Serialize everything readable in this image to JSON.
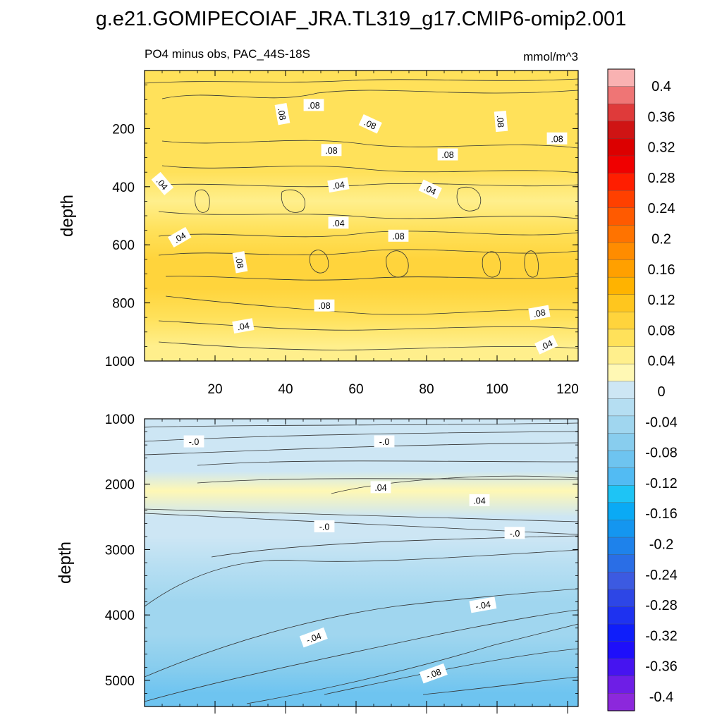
{
  "chart_data": {
    "type": "contour",
    "title": "g.e21.GOMIPECOIAF_JRA.TL319_g17.CMIP6-omip2.001",
    "subtitle_left": "PO4 minus obs, PAC_44S-18S",
    "subtitle_right": "mmol/m^3",
    "colorbar": {
      "labels": [
        "0.4",
        "0.36",
        "0.32",
        "0.28",
        "0.24",
        "0.2",
        "0.16",
        "0.12",
        "0.08",
        "0.04",
        "0",
        "-0.04",
        "-0.08",
        "-0.12",
        "-0.16",
        "-0.2",
        "-0.24",
        "-0.28",
        "-0.32",
        "-0.36",
        "-0.4"
      ],
      "colors": [
        "#f9b2b2",
        "#ef7575",
        "#df3a3a",
        "#cf1414",
        "#dc0000",
        "#f00000",
        "#ff1e00",
        "#ff4000",
        "#ff5a00",
        "#ff7300",
        "#ff8c00",
        "#ffa000",
        "#ffb300",
        "#ffc61e",
        "#ffd43c",
        "#ffe15a",
        "#ffef8c",
        "#fff8b4",
        "#cde6f4",
        "#b5def2",
        "#a0d6ef",
        "#88cdee",
        "#6ec4f0",
        "#52bbf3",
        "#1ec4f5",
        "#0aaaf5",
        "#1496f0",
        "#1e82eb",
        "#2a6ee6",
        "#3c5ae1",
        "#2d46e6",
        "#1e32f0",
        "#0f1efa",
        "#1e0ffa",
        "#4614f0",
        "#6e1ee6",
        "#8c28dc"
      ]
    },
    "panels": [
      {
        "id": "upper",
        "ylabel": "depth",
        "xlim": [
          0,
          123
        ],
        "ylim": [
          1000,
          0
        ],
        "x_ticks": [
          "20",
          "40",
          "60",
          "80",
          "100",
          "120"
        ],
        "y_ticks": [
          "200",
          "400",
          "600",
          "800",
          "1000"
        ],
        "levels": [
          {
            "depth": 50,
            "value": 0.06
          },
          {
            "depth": 150,
            "value": 0.08
          },
          {
            "depth": 250,
            "value": 0.08
          },
          {
            "depth": 350,
            "value": 0.06
          },
          {
            "depth": 450,
            "value": 0.04
          },
          {
            "depth": 550,
            "value": 0.06
          },
          {
            "depth": 650,
            "value": 0.09
          },
          {
            "depth": 750,
            "value": 0.09
          },
          {
            "depth": 850,
            "value": 0.07
          },
          {
            "depth": 950,
            "value": 0.05
          }
        ],
        "contour_labels": [
          {
            "text": ".08",
            "x": 48,
            "depth": 120,
            "angle": 0
          },
          {
            "text": ".08",
            "x": 0,
            "depth": 150,
            "angle": 80,
            "offset_x": 38
          },
          {
            "text": ".08",
            "x": 64,
            "depth": 185,
            "angle": 25
          },
          {
            "text": ".08",
            "x": 101,
            "depth": 175,
            "angle": 85
          },
          {
            "text": ".08",
            "x": 117,
            "depth": 235,
            "angle": 0
          },
          {
            "text": ".08",
            "x": 53,
            "depth": 275,
            "angle": 0
          },
          {
            "text": ".08",
            "x": 86,
            "depth": 290,
            "angle": 0
          },
          {
            "text": ".04",
            "x": 5,
            "depth": 390,
            "angle": 50
          },
          {
            "text": ".04",
            "x": 55,
            "depth": 395,
            "angle": -10
          },
          {
            "text": ".04",
            "x": 81,
            "depth": 410,
            "angle": 25
          },
          {
            "text": ".04",
            "x": 55,
            "depth": 525,
            "angle": 0
          },
          {
            "text": ".04",
            "x": 10,
            "depth": 575,
            "angle": -30
          },
          {
            "text": ".08",
            "x": 72,
            "depth": 570,
            "angle": 0
          },
          {
            "text": ".08",
            "x": 27,
            "depth": 660,
            "angle": 80
          },
          {
            "text": ".08",
            "x": 51,
            "depth": 810,
            "angle": 0
          },
          {
            "text": ".08",
            "x": 112,
            "depth": 835,
            "angle": -10
          },
          {
            "text": ".04",
            "x": 28,
            "depth": 880,
            "angle": -10
          },
          {
            "text": ".04",
            "x": 114,
            "depth": 945,
            "angle": -25
          }
        ]
      },
      {
        "id": "lower",
        "ylabel": "depth",
        "xlim": [
          0,
          123
        ],
        "ylim": [
          5400,
          1000
        ],
        "y_ticks": [
          "1000",
          "2000",
          "3000",
          "4000",
          "5000"
        ],
        "levels": [
          {
            "depth": 1100,
            "value": 0.0
          },
          {
            "depth": 1400,
            "value": -0.01
          },
          {
            "depth": 1800,
            "value": 0.01
          },
          {
            "depth": 2100,
            "value": 0.03
          },
          {
            "depth": 2500,
            "value": 0.01
          },
          {
            "depth": 2800,
            "value": -0.01
          },
          {
            "depth": 3300,
            "value": -0.03
          },
          {
            "depth": 3800,
            "value": -0.04
          },
          {
            "depth": 4300,
            "value": -0.05
          },
          {
            "depth": 4800,
            "value": -0.07
          },
          {
            "depth": 5200,
            "value": -0.09
          }
        ],
        "contour_labels": [
          {
            "text": "-.0",
            "x": 14,
            "depth": 1350,
            "angle": 0
          },
          {
            "text": "-.0",
            "x": 68,
            "depth": 1350,
            "angle": 0
          },
          {
            "text": ".04",
            "x": 67,
            "depth": 2050,
            "angle": 0
          },
          {
            "text": ".04",
            "x": 95,
            "depth": 2250,
            "angle": 0
          },
          {
            "text": "-.0",
            "x": 51,
            "depth": 2650,
            "angle": 0
          },
          {
            "text": "-.0",
            "x": 105,
            "depth": 2750,
            "angle": 0
          },
          {
            "text": "-.04",
            "x": 96,
            "depth": 3850,
            "angle": -10
          },
          {
            "text": "-.04",
            "x": 48,
            "depth": 4350,
            "angle": -20
          },
          {
            "text": "-.08",
            "x": 82,
            "depth": 4900,
            "angle": -20
          }
        ]
      }
    ]
  }
}
